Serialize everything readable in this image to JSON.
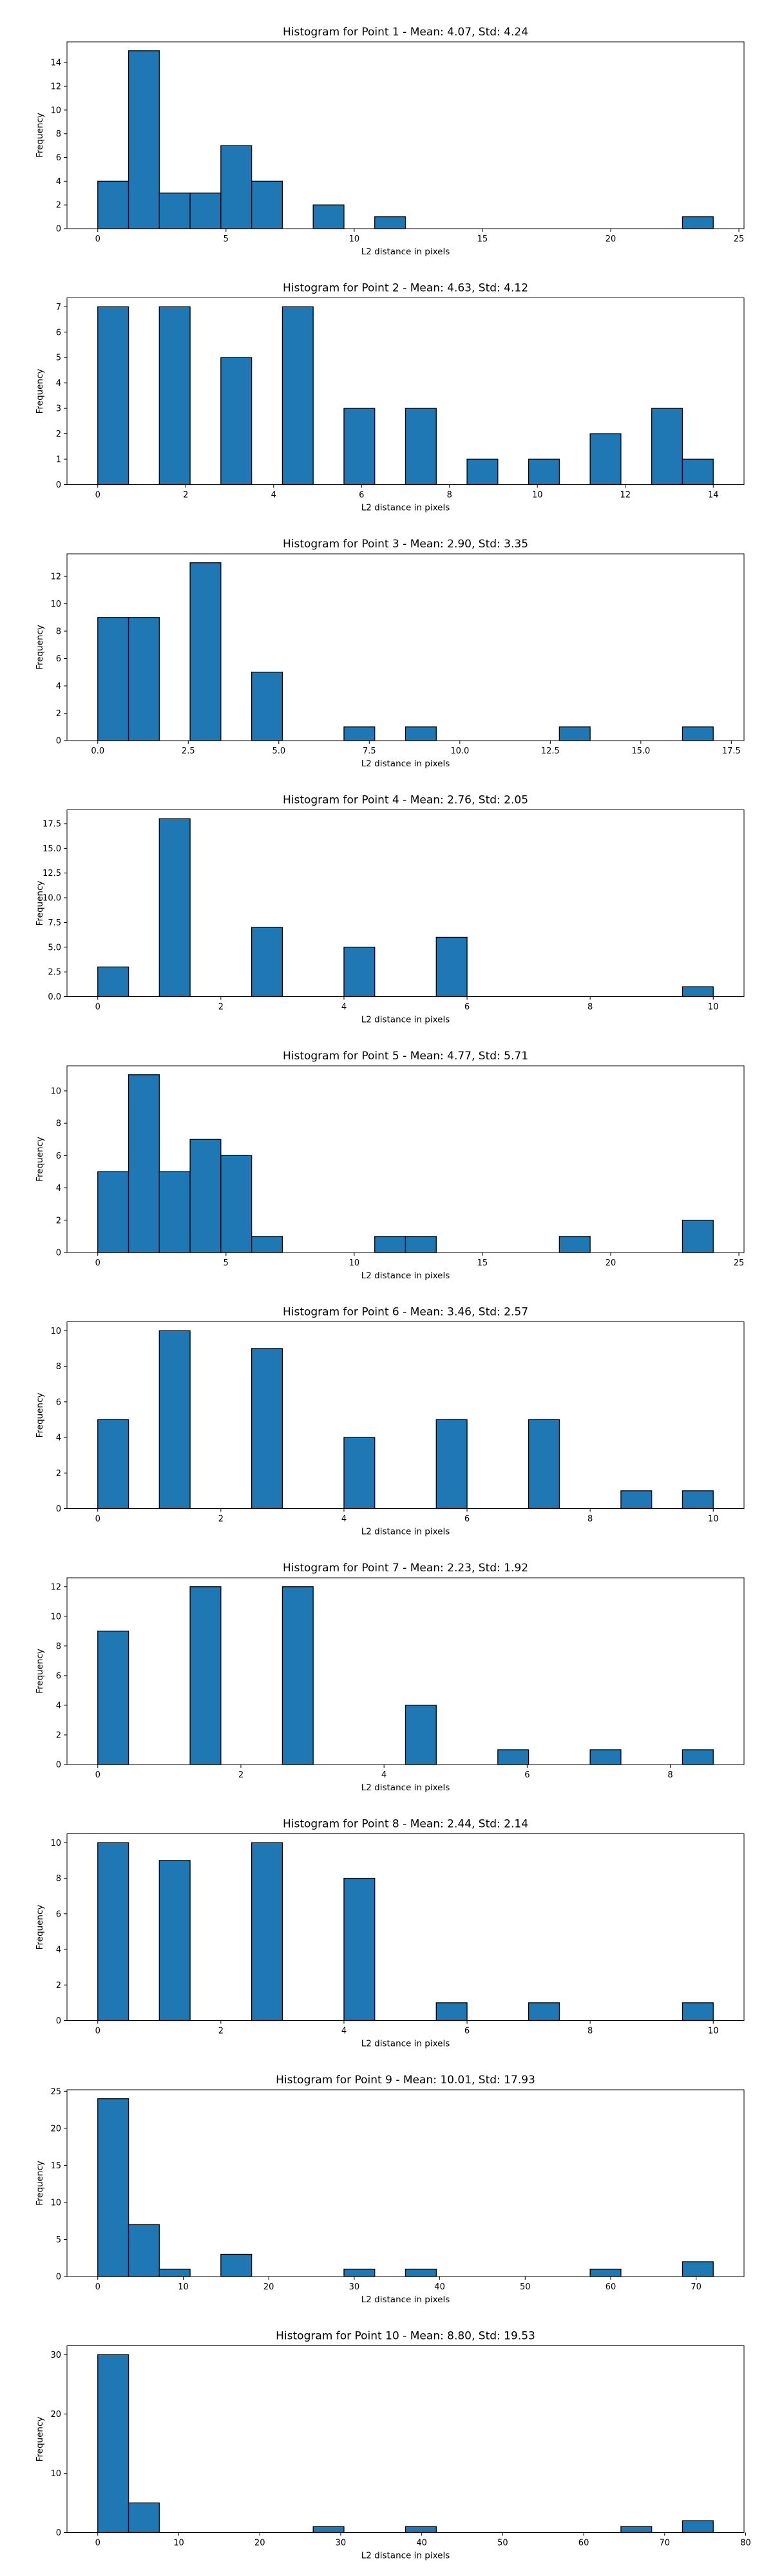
{
  "chart_data": [
    {
      "type": "bar",
      "title": "Histogram for Point 1 - Mean: 4.07, Std: 4.24",
      "xlabel": "L2 distance in pixels",
      "ylabel": "Frequency",
      "xlim": [
        -1.2,
        25.2
      ],
      "ylim": [
        0,
        15.75
      ],
      "xticks": [
        0,
        5,
        10,
        15,
        20,
        25
      ],
      "xtick_labels": [
        "0",
        "5",
        "10",
        "15",
        "20",
        "25"
      ],
      "yticks": [
        0,
        2,
        4,
        6,
        8,
        10,
        12,
        14
      ],
      "ytick_labels": [
        "0",
        "2",
        "4",
        "6",
        "8",
        "10",
        "12",
        "14"
      ],
      "bins": [
        [
          0,
          1.2,
          4
        ],
        [
          1.2,
          2.4,
          15
        ],
        [
          2.4,
          3.6,
          3
        ],
        [
          3.6,
          4.8,
          3
        ],
        [
          4.8,
          6.0,
          7
        ],
        [
          6.0,
          7.2,
          4
        ],
        [
          8.4,
          9.6,
          2
        ],
        [
          10.8,
          12.0,
          1
        ],
        [
          22.8,
          24.0,
          1
        ]
      ]
    },
    {
      "type": "bar",
      "title": "Histogram for Point 2 - Mean: 4.63, Std: 4.12",
      "xlabel": "L2 distance in pixels",
      "ylabel": "Frequency",
      "xlim": [
        -0.7,
        14.7
      ],
      "ylim": [
        0,
        7.35
      ],
      "xticks": [
        0,
        2,
        4,
        6,
        8,
        10,
        12,
        14
      ],
      "xtick_labels": [
        "0",
        "2",
        "4",
        "6",
        "8",
        "10",
        "12",
        "14"
      ],
      "yticks": [
        0,
        1,
        2,
        3,
        4,
        5,
        6,
        7
      ],
      "ytick_labels": [
        "0",
        "1",
        "2",
        "3",
        "4",
        "5",
        "6",
        "7"
      ],
      "bins": [
        [
          0,
          0.7,
          7
        ],
        [
          1.4,
          2.1,
          7
        ],
        [
          2.8,
          3.5,
          5
        ],
        [
          4.2,
          4.9,
          7
        ],
        [
          5.6,
          6.3,
          3
        ],
        [
          7.0,
          7.7,
          3
        ],
        [
          8.4,
          9.1,
          1
        ],
        [
          9.8,
          10.5,
          1
        ],
        [
          11.2,
          11.9,
          2
        ],
        [
          12.6,
          13.3,
          3
        ],
        [
          13.3,
          14.0,
          1
        ]
      ]
    },
    {
      "type": "bar",
      "title": "Histogram for Point 3 - Mean: 2.90, Std: 3.35",
      "xlabel": "L2 distance in pixels",
      "ylabel": "Frequency",
      "xlim": [
        -0.85,
        17.85
      ],
      "ylim": [
        0,
        13.65
      ],
      "xticks": [
        0,
        2.5,
        5,
        7.5,
        10,
        12.5,
        15,
        17.5
      ],
      "xtick_labels": [
        "0.0",
        "2.5",
        "5.0",
        "7.5",
        "10.0",
        "12.5",
        "15.0",
        "17.5"
      ],
      "yticks": [
        0,
        2,
        4,
        6,
        8,
        10,
        12
      ],
      "ytick_labels": [
        "0",
        "2",
        "4",
        "6",
        "8",
        "10",
        "12"
      ],
      "bins": [
        [
          0,
          0.85,
          9
        ],
        [
          0.85,
          1.7,
          9
        ],
        [
          2.55,
          3.4,
          13
        ],
        [
          4.25,
          5.1,
          5
        ],
        [
          6.8,
          7.65,
          1
        ],
        [
          8.5,
          9.35,
          1
        ],
        [
          12.75,
          13.6,
          1
        ],
        [
          16.15,
          17.0,
          1
        ]
      ]
    },
    {
      "type": "bar",
      "title": "Histogram for Point 4 - Mean: 2.76, Std: 2.05",
      "xlabel": "L2 distance in pixels",
      "ylabel": "Frequency",
      "xlim": [
        -0.5,
        10.5
      ],
      "ylim": [
        0,
        18.9
      ],
      "xticks": [
        0,
        2,
        4,
        6,
        8,
        10
      ],
      "xtick_labels": [
        "0",
        "2",
        "4",
        "6",
        "8",
        "10"
      ],
      "yticks": [
        0,
        2.5,
        5,
        7.5,
        10,
        12.5,
        15,
        17.5
      ],
      "ytick_labels": [
        "0.0",
        "2.5",
        "5.0",
        "7.5",
        "10.0",
        "12.5",
        "15.0",
        "17.5"
      ],
      "bins": [
        [
          0,
          0.5,
          3
        ],
        [
          1.0,
          1.5,
          18
        ],
        [
          2.5,
          3.0,
          7
        ],
        [
          4.0,
          4.5,
          5
        ],
        [
          5.5,
          6.0,
          6
        ],
        [
          9.5,
          10.0,
          1
        ]
      ]
    },
    {
      "type": "bar",
      "title": "Histogram for Point 5 - Mean: 4.77, Std: 5.71",
      "xlabel": "L2 distance in pixels",
      "ylabel": "Frequency",
      "xlim": [
        -1.2,
        25.2
      ],
      "ylim": [
        0,
        11.55
      ],
      "xticks": [
        0,
        5,
        10,
        15,
        20,
        25
      ],
      "xtick_labels": [
        "0",
        "5",
        "10",
        "15",
        "20",
        "25"
      ],
      "yticks": [
        0,
        2,
        4,
        6,
        8,
        10
      ],
      "ytick_labels": [
        "0",
        "2",
        "4",
        "6",
        "8",
        "10"
      ],
      "bins": [
        [
          0,
          1.2,
          5
        ],
        [
          1.2,
          2.4,
          11
        ],
        [
          2.4,
          3.6,
          5
        ],
        [
          3.6,
          4.8,
          7
        ],
        [
          4.8,
          6.0,
          6
        ],
        [
          6.0,
          7.2,
          1
        ],
        [
          10.8,
          12.0,
          1
        ],
        [
          12.0,
          13.2,
          1
        ],
        [
          18.0,
          19.2,
          1
        ],
        [
          22.8,
          24.0,
          2
        ]
      ]
    },
    {
      "type": "bar",
      "title": "Histogram for Point 6 - Mean: 3.46, Std: 2.57",
      "xlabel": "L2 distance in pixels",
      "ylabel": "Frequency",
      "xlim": [
        -0.5,
        10.5
      ],
      "ylim": [
        0,
        10.5
      ],
      "xticks": [
        0,
        2,
        4,
        6,
        8,
        10
      ],
      "xtick_labels": [
        "0",
        "2",
        "4",
        "6",
        "8",
        "10"
      ],
      "yticks": [
        0,
        2,
        4,
        6,
        8,
        10
      ],
      "ytick_labels": [
        "0",
        "2",
        "4",
        "6",
        "8",
        "10"
      ],
      "bins": [
        [
          0,
          0.5,
          5
        ],
        [
          1.0,
          1.5,
          10
        ],
        [
          2.5,
          3.0,
          9
        ],
        [
          4.0,
          4.5,
          4
        ],
        [
          5.5,
          6.0,
          5
        ],
        [
          7.0,
          7.5,
          5
        ],
        [
          8.5,
          9.0,
          1
        ],
        [
          9.5,
          10.0,
          1
        ]
      ]
    },
    {
      "type": "bar",
      "title": "Histogram for Point 7 - Mean: 2.23, Std: 1.92",
      "xlabel": "L2 distance in pixels",
      "ylabel": "Frequency",
      "xlim": [
        -0.43,
        9.03
      ],
      "ylim": [
        0,
        12.6
      ],
      "xticks": [
        0,
        2,
        4,
        6,
        8
      ],
      "xtick_labels": [
        "0",
        "2",
        "4",
        "6",
        "8"
      ],
      "yticks": [
        0,
        2,
        4,
        6,
        8,
        10,
        12
      ],
      "ytick_labels": [
        "0",
        "2",
        "4",
        "6",
        "8",
        "10",
        "12"
      ],
      "bins": [
        [
          0,
          0.43,
          9
        ],
        [
          1.29,
          1.72,
          12
        ],
        [
          2.58,
          3.01,
          12
        ],
        [
          4.3,
          4.73,
          4
        ],
        [
          5.59,
          6.02,
          1
        ],
        [
          6.88,
          7.31,
          1
        ],
        [
          8.17,
          8.6,
          1
        ]
      ]
    },
    {
      "type": "bar",
      "title": "Histogram for Point 8 - Mean: 2.44, Std: 2.14",
      "xlabel": "L2 distance in pixels",
      "ylabel": "Frequency",
      "xlim": [
        -0.5,
        10.5
      ],
      "ylim": [
        0,
        10.5
      ],
      "xticks": [
        0,
        2,
        4,
        6,
        8,
        10
      ],
      "xtick_labels": [
        "0",
        "2",
        "4",
        "6",
        "8",
        "10"
      ],
      "yticks": [
        0,
        2,
        4,
        6,
        8,
        10
      ],
      "ytick_labels": [
        "0",
        "2",
        "4",
        "6",
        "8",
        "10"
      ],
      "bins": [
        [
          0,
          0.5,
          10
        ],
        [
          1.0,
          1.5,
          9
        ],
        [
          2.5,
          3.0,
          10
        ],
        [
          4.0,
          4.5,
          8
        ],
        [
          5.5,
          6.0,
          1
        ],
        [
          7.0,
          7.5,
          1
        ],
        [
          9.5,
          10.0,
          1
        ]
      ]
    },
    {
      "type": "bar",
      "title": "Histogram for Point 9 - Mean: 10.01, Std: 17.93",
      "xlabel": "L2 distance in pixels",
      "ylabel": "Frequency",
      "xlim": [
        -3.6,
        75.6
      ],
      "ylim": [
        0,
        25.2
      ],
      "xticks": [
        0,
        10,
        20,
        30,
        40,
        50,
        60,
        70
      ],
      "xtick_labels": [
        "0",
        "10",
        "20",
        "30",
        "40",
        "50",
        "60",
        "70"
      ],
      "yticks": [
        0,
        5,
        10,
        15,
        20,
        25
      ],
      "ytick_labels": [
        "0",
        "5",
        "10",
        "15",
        "20",
        "25"
      ],
      "bins": [
        [
          0,
          3.6,
          24
        ],
        [
          3.6,
          7.2,
          7
        ],
        [
          7.2,
          10.8,
          1
        ],
        [
          14.4,
          18.0,
          3
        ],
        [
          28.8,
          32.4,
          1
        ],
        [
          36.0,
          39.6,
          1
        ],
        [
          57.6,
          61.2,
          1
        ],
        [
          68.4,
          72.0,
          2
        ]
      ]
    },
    {
      "type": "bar",
      "title": "Histogram for Point 10 - Mean: 8.80, Std: 19.53",
      "xlabel": "L2 distance in pixels",
      "ylabel": "Frequency",
      "xlim": [
        -3.8,
        79.8
      ],
      "ylim": [
        0,
        31.5
      ],
      "xticks": [
        0,
        10,
        20,
        30,
        40,
        50,
        60,
        70,
        80
      ],
      "xtick_labels": [
        "0",
        "10",
        "20",
        "30",
        "40",
        "50",
        "60",
        "70",
        "80"
      ],
      "yticks": [
        0,
        10,
        20,
        30
      ],
      "ytick_labels": [
        "0",
        "10",
        "20",
        "30"
      ],
      "bins": [
        [
          0,
          3.8,
          30
        ],
        [
          3.8,
          7.6,
          5
        ],
        [
          26.6,
          30.4,
          1
        ],
        [
          38.0,
          41.8,
          1
        ],
        [
          64.6,
          68.4,
          1
        ],
        [
          72.2,
          76.0,
          2
        ]
      ]
    }
  ],
  "colors": {
    "bar_fill": "#1f77b4",
    "bar_edge": "#000000",
    "axis": "#000000"
  }
}
